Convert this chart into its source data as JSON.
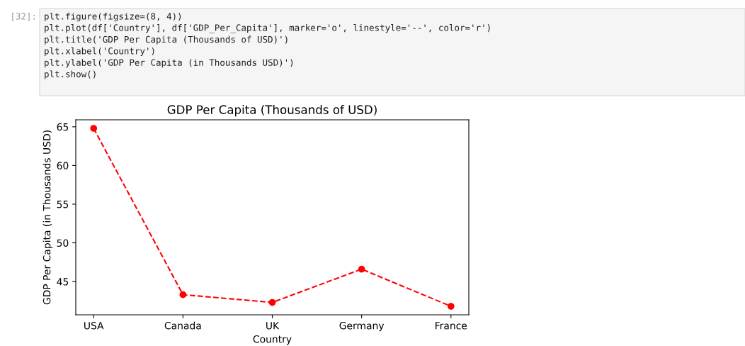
{
  "chart_data": {
    "type": "line",
    "title": "GDP Per Capita (Thousands of USD)",
    "xlabel": "Country",
    "ylabel": "GDP Per Capita (in Thousands USD)",
    "categories": [
      "USA",
      "Canada",
      "UK",
      "Germany",
      "France"
    ],
    "series": [
      {
        "color": "#ff0000",
        "values": [
          64.8,
          43.3,
          42.3,
          46.6,
          41.8
        ]
      }
    ],
    "marker": "circle",
    "line_style": "dashed",
    "ylim": [
      40.7,
      65.9
    ],
    "yticks": [
      45,
      50,
      55,
      60,
      65
    ],
    "annotations": [
      "[32]:",
      "plt.figure(figsize=(8, 4))",
      "plt.plot(df['Country'], df['GDP_Per_Capita'], marker='o', linestyle='--', color='r')",
      "plt.title('GDP Per Capita (Thousands of USD)')",
      "plt.xlabel('Country')",
      "plt.ylabel('GDP Per Capita (in Thousands USD)')",
      "plt.show()"
    ]
  }
}
